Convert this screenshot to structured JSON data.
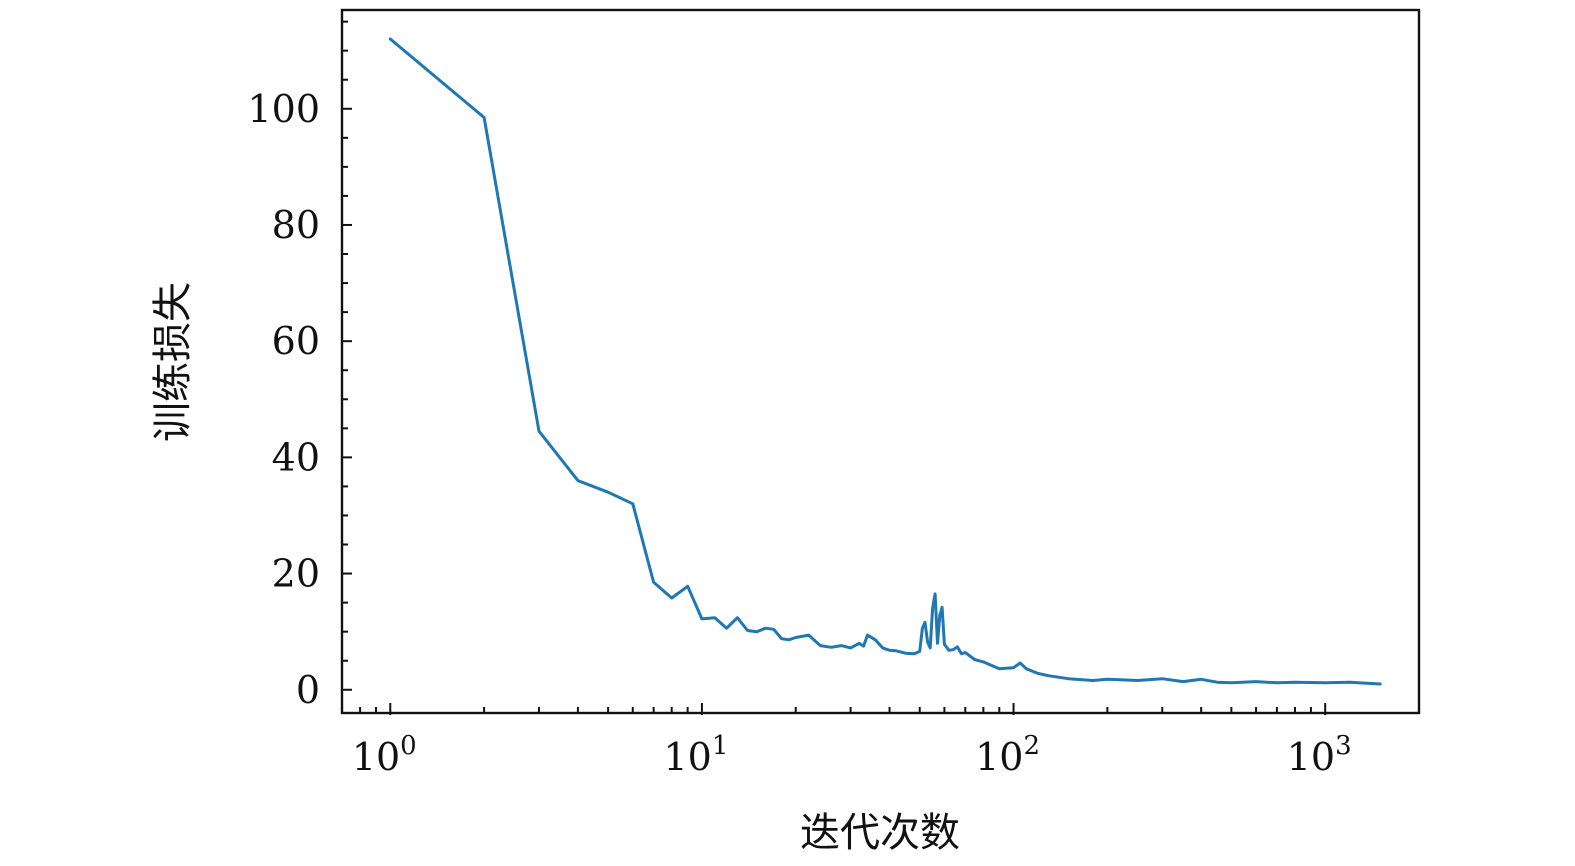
{
  "chart_data": {
    "type": "line",
    "title": "",
    "xlabel": "迭代次数",
    "ylabel": "训练损失",
    "xscale": "log",
    "xlim": [
      0.7,
      2000
    ],
    "ylim": [
      -4,
      117
    ],
    "grid": false,
    "legend": "none",
    "x_ticks": [
      {
        "value": 1,
        "base": "10",
        "exp": "0"
      },
      {
        "value": 10,
        "base": "10",
        "exp": "1"
      },
      {
        "value": 100,
        "base": "10",
        "exp": "2"
      },
      {
        "value": 1000,
        "base": "10",
        "exp": "3"
      }
    ],
    "y_ticks": [
      {
        "value": 0,
        "label": "0"
      },
      {
        "value": 20,
        "label": "20"
      },
      {
        "value": 40,
        "label": "40"
      },
      {
        "value": 60,
        "label": "60"
      },
      {
        "value": 80,
        "label": "80"
      },
      {
        "value": 100,
        "label": "100"
      }
    ],
    "series": [
      {
        "color": "#1f77b4",
        "x": [
          1,
          2,
          3,
          4,
          5,
          6,
          7,
          8,
          9,
          10,
          11,
          12,
          13,
          14,
          15,
          16,
          17,
          18,
          19,
          20,
          22,
          24,
          26,
          28,
          30,
          32,
          33,
          34,
          36,
          38,
          40,
          42,
          45,
          48,
          50,
          51,
          52,
          53,
          54,
          55,
          56,
          57,
          58,
          59,
          60,
          62,
          64,
          66,
          68,
          70,
          75,
          80,
          90,
          100,
          105,
          110,
          120,
          130,
          150,
          180,
          200,
          250,
          300,
          350,
          400,
          450,
          500,
          600,
          700,
          800,
          1000,
          1200,
          1500
        ],
        "y": [
          112,
          98.5,
          44.5,
          36,
          34,
          32,
          18.5,
          15.8,
          17.8,
          12.2,
          12.4,
          10.6,
          12.4,
          10.2,
          10.0,
          10.6,
          10.4,
          8.8,
          8.6,
          9.0,
          9.4,
          7.6,
          7.3,
          7.6,
          7.2,
          8.0,
          7.5,
          9.4,
          8.6,
          7.2,
          6.8,
          6.7,
          6.3,
          6.2,
          6.6,
          10.6,
          11.6,
          8.2,
          7.2,
          14.0,
          16.5,
          8.0,
          12.8,
          14.2,
          7.8,
          6.8,
          6.9,
          7.4,
          6.2,
          6.4,
          5.2,
          4.8,
          3.6,
          3.8,
          4.6,
          3.6,
          2.8,
          2.4,
          1.9,
          1.6,
          1.8,
          1.6,
          1.9,
          1.4,
          1.8,
          1.3,
          1.2,
          1.4,
          1.2,
          1.3,
          1.2,
          1.3,
          1.0
        ]
      }
    ]
  }
}
